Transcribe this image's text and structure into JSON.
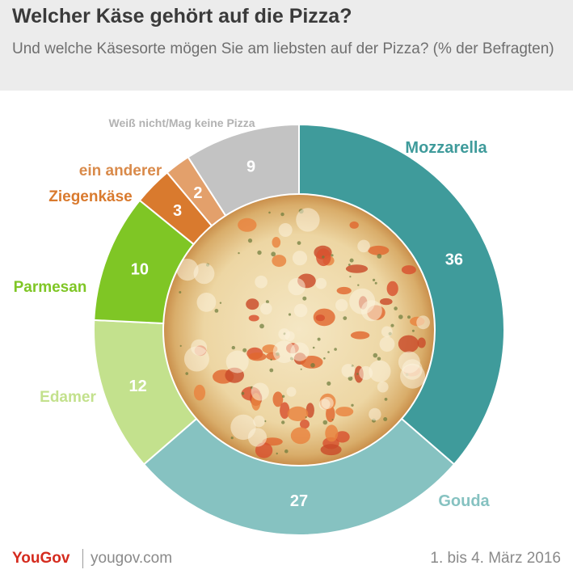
{
  "title": "Welcher Käse gehört auf die Pizza?",
  "subtitle": "Und welche Käsesorte mögen Sie am liebsten auf der Pizza? (% der Befragten)",
  "chart_data": {
    "type": "pie",
    "variant": "donut",
    "categories": [
      "Mozzarella",
      "Gouda",
      "Edamer",
      "Parmesan",
      "Ziegenkäse",
      "ein anderer",
      "Weiß nicht/Mag keine Pizza"
    ],
    "values": [
      36,
      27,
      12,
      10,
      3,
      2,
      9
    ],
    "colors": [
      "#3f9b9b",
      "#86c2c1",
      "#c3e18d",
      "#7fc625",
      "#d97a2e",
      "#e3a06b",
      "#c3c3c3"
    ],
    "label_colors": [
      "#3f9b9b",
      "#86c2c1",
      "#c3e18d",
      "#7fc625",
      "#d97a2e",
      "#d98a4a",
      "#b2b2b2"
    ],
    "center_image": "pizza"
  },
  "footer": {
    "brand": "YouGov",
    "site": "yougov.com",
    "date": "1. bis 4. März 2016"
  }
}
